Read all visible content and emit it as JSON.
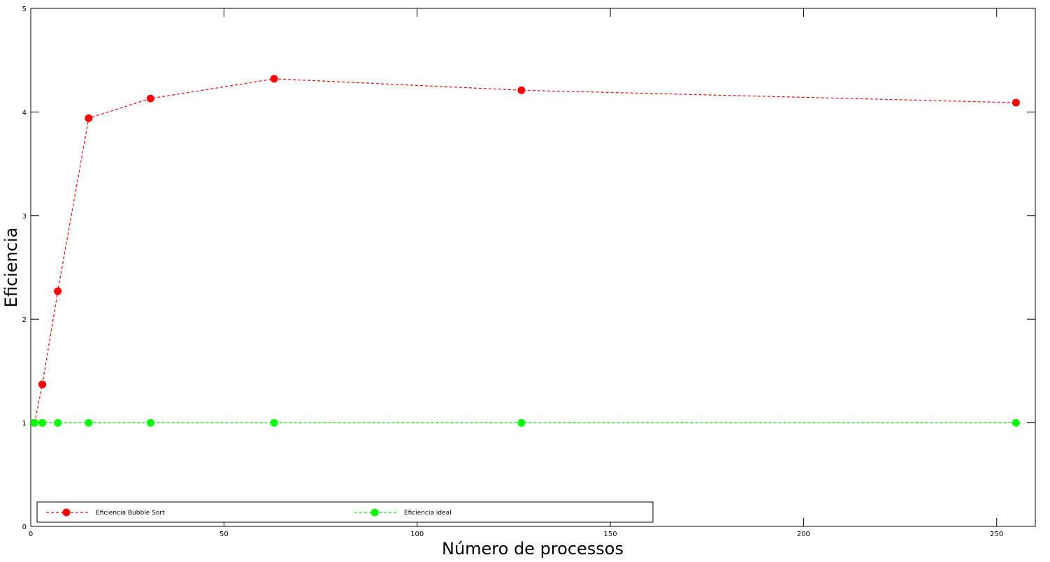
{
  "chart_data": {
    "type": "line",
    "title": "",
    "xlabel": "Número de processos",
    "ylabel": "Eficiencia",
    "xlim": [
      0,
      260
    ],
    "ylim": [
      0,
      5
    ],
    "xticks": [
      0,
      50,
      100,
      150,
      200,
      250
    ],
    "yticks": [
      0,
      1,
      2,
      3,
      4,
      5
    ],
    "grid": false,
    "legend_position": "bottom",
    "series": [
      {
        "name": "Eficiencia Bubble Sort",
        "color": "#ff0000",
        "x": [
          1,
          3,
          7,
          15,
          31,
          63,
          127,
          255
        ],
        "y": [
          1.0,
          1.37,
          2.27,
          3.94,
          4.13,
          4.32,
          4.21,
          4.09
        ]
      },
      {
        "name": "Eficiencia ideal",
        "color": "#00ff00",
        "x": [
          1,
          3,
          7,
          15,
          31,
          63,
          127,
          255
        ],
        "y": [
          1,
          1,
          1,
          1,
          1,
          1,
          1,
          1
        ]
      }
    ]
  }
}
